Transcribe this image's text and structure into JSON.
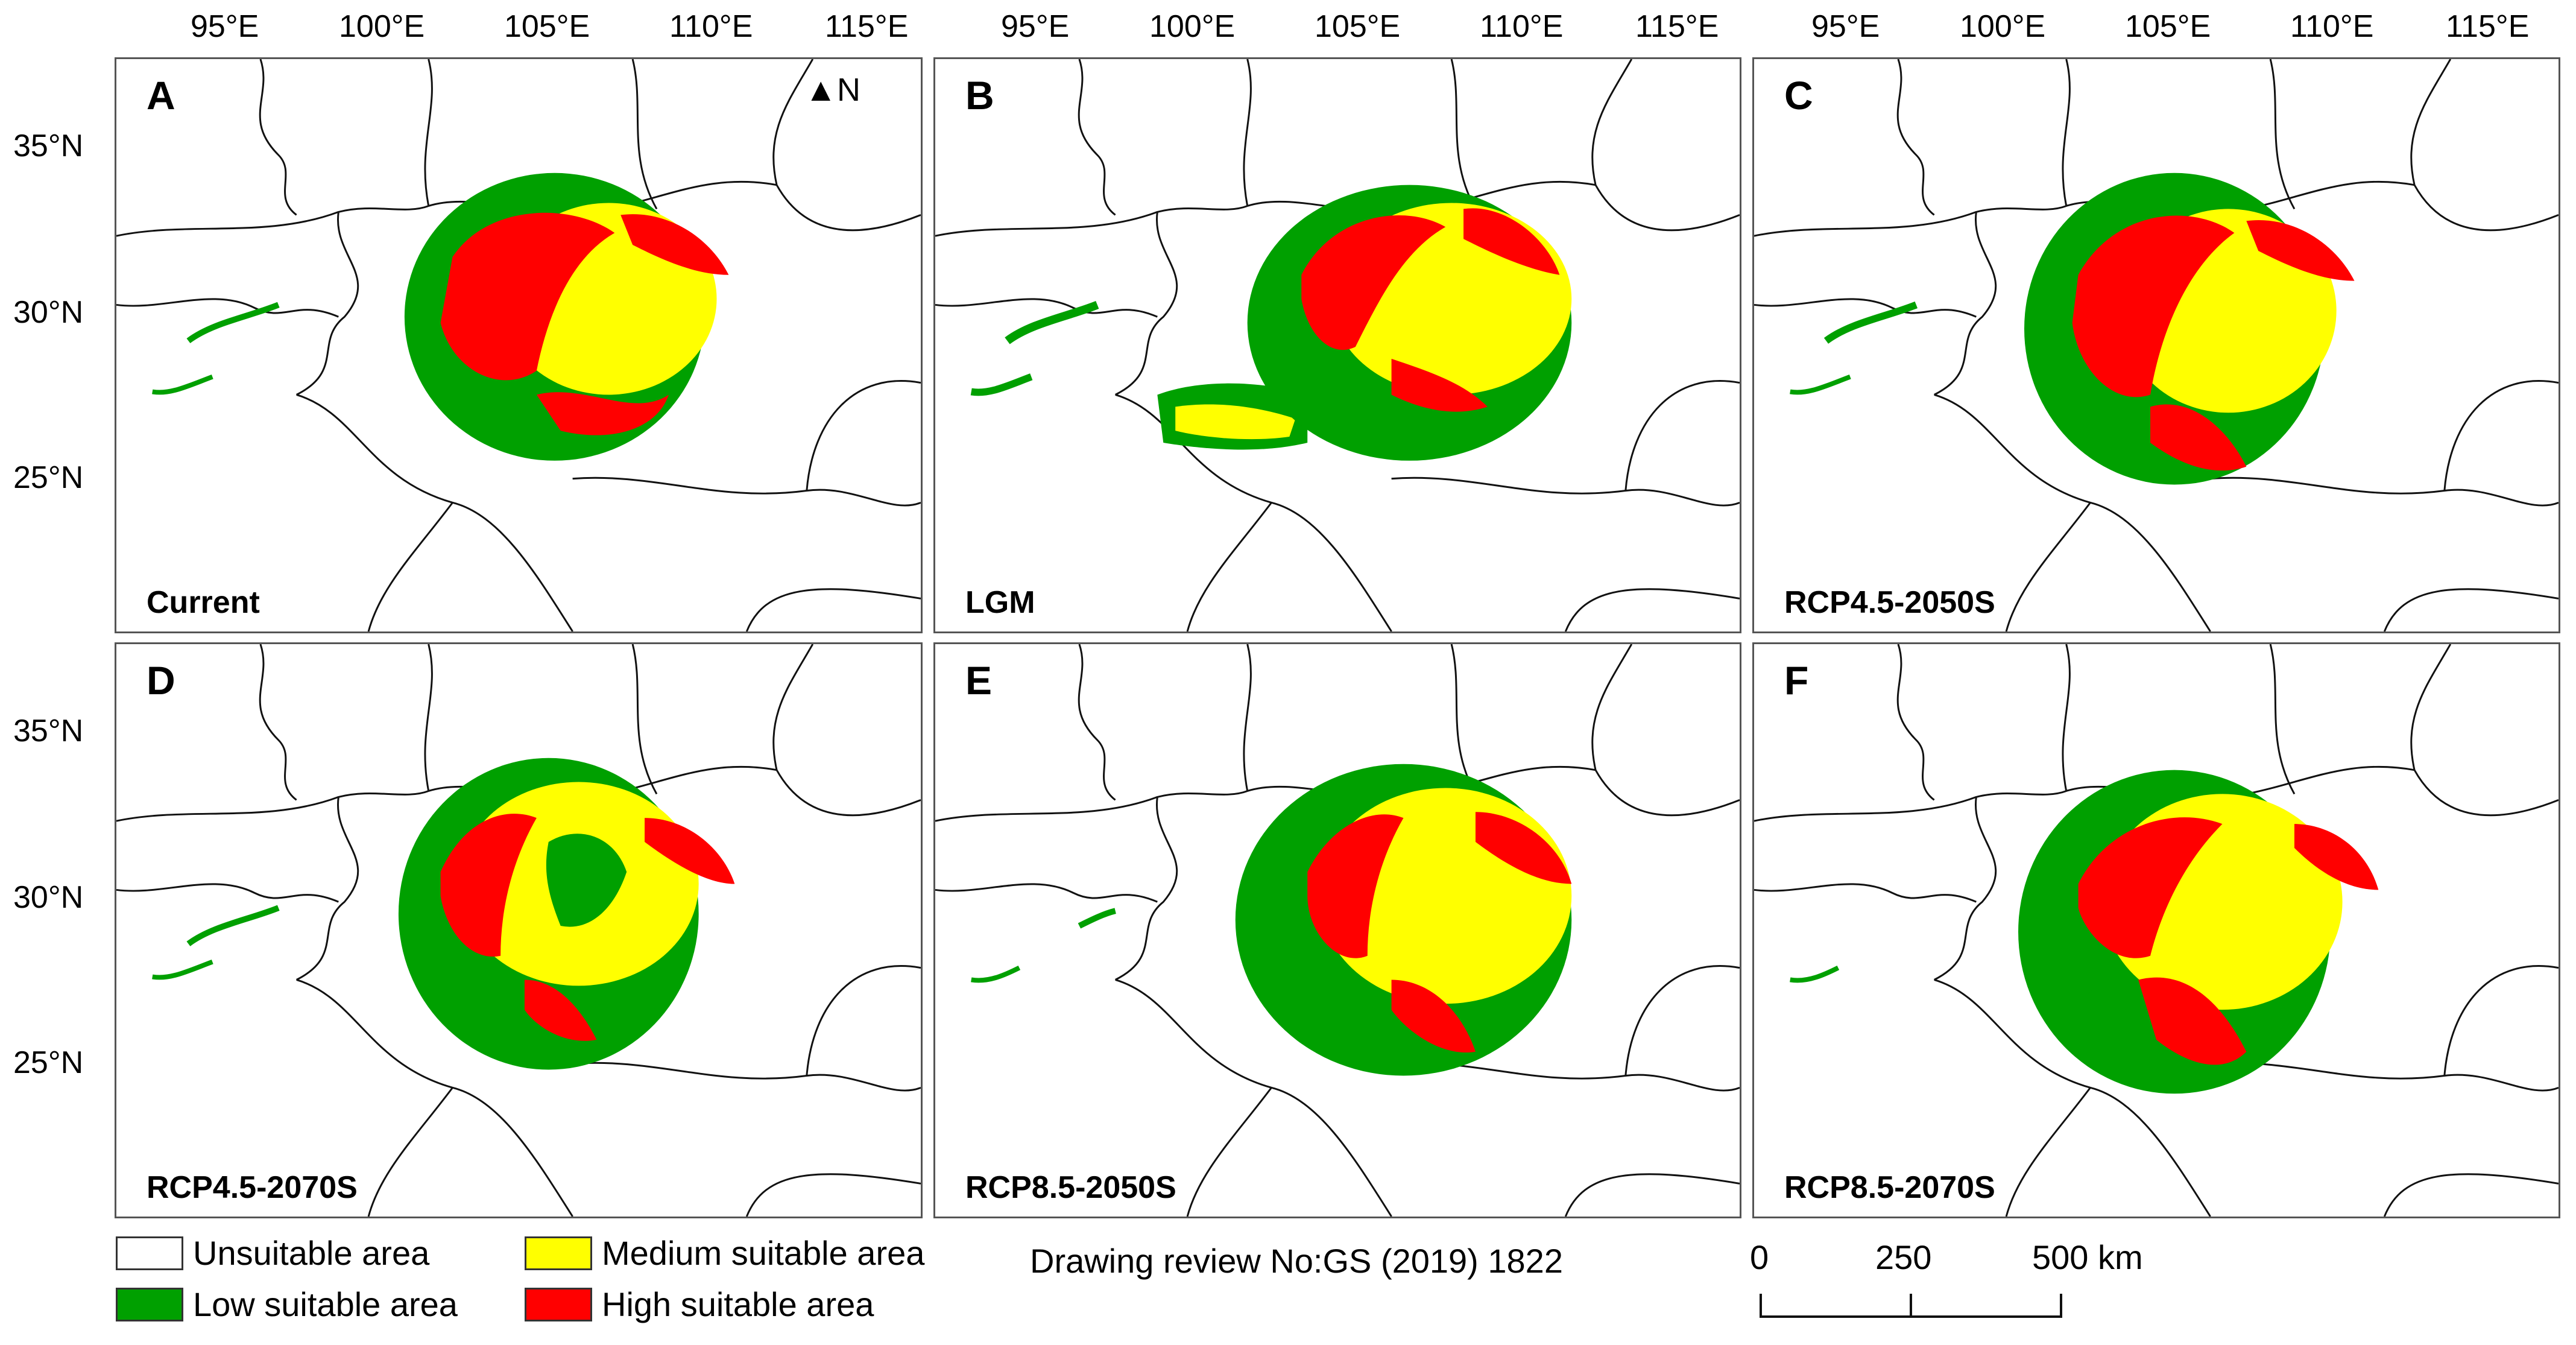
{
  "map": {
    "lon_ticks": [
      "95°E",
      "100°E",
      "105°E",
      "110°E",
      "115°E"
    ],
    "lat_ticks": [
      "35°N",
      "30°N",
      "25°N"
    ],
    "north_arrow_label": "N",
    "panels": [
      {
        "letter": "A",
        "scenario": "Current"
      },
      {
        "letter": "B",
        "scenario": "LGM"
      },
      {
        "letter": "C",
        "scenario": "RCP4.5-2050S"
      },
      {
        "letter": "D",
        "scenario": "RCP4.5-2070S"
      },
      {
        "letter": "E",
        "scenario": "RCP8.5-2050S"
      },
      {
        "letter": "F",
        "scenario": "RCP8.5-2070S"
      }
    ],
    "legend": [
      {
        "label": "Unsuitable area",
        "color": "#ffffff"
      },
      {
        "label": "Low suitable area",
        "color": "#00a000"
      },
      {
        "label": "Medium suitable area",
        "color": "#ffff00"
      },
      {
        "label": "High suitable area",
        "color": "#ff0000"
      }
    ],
    "review_note": "Drawing review No:GS  (2019) 1822",
    "scale": {
      "labels": [
        "0",
        "250",
        "500 km"
      ]
    }
  }
}
